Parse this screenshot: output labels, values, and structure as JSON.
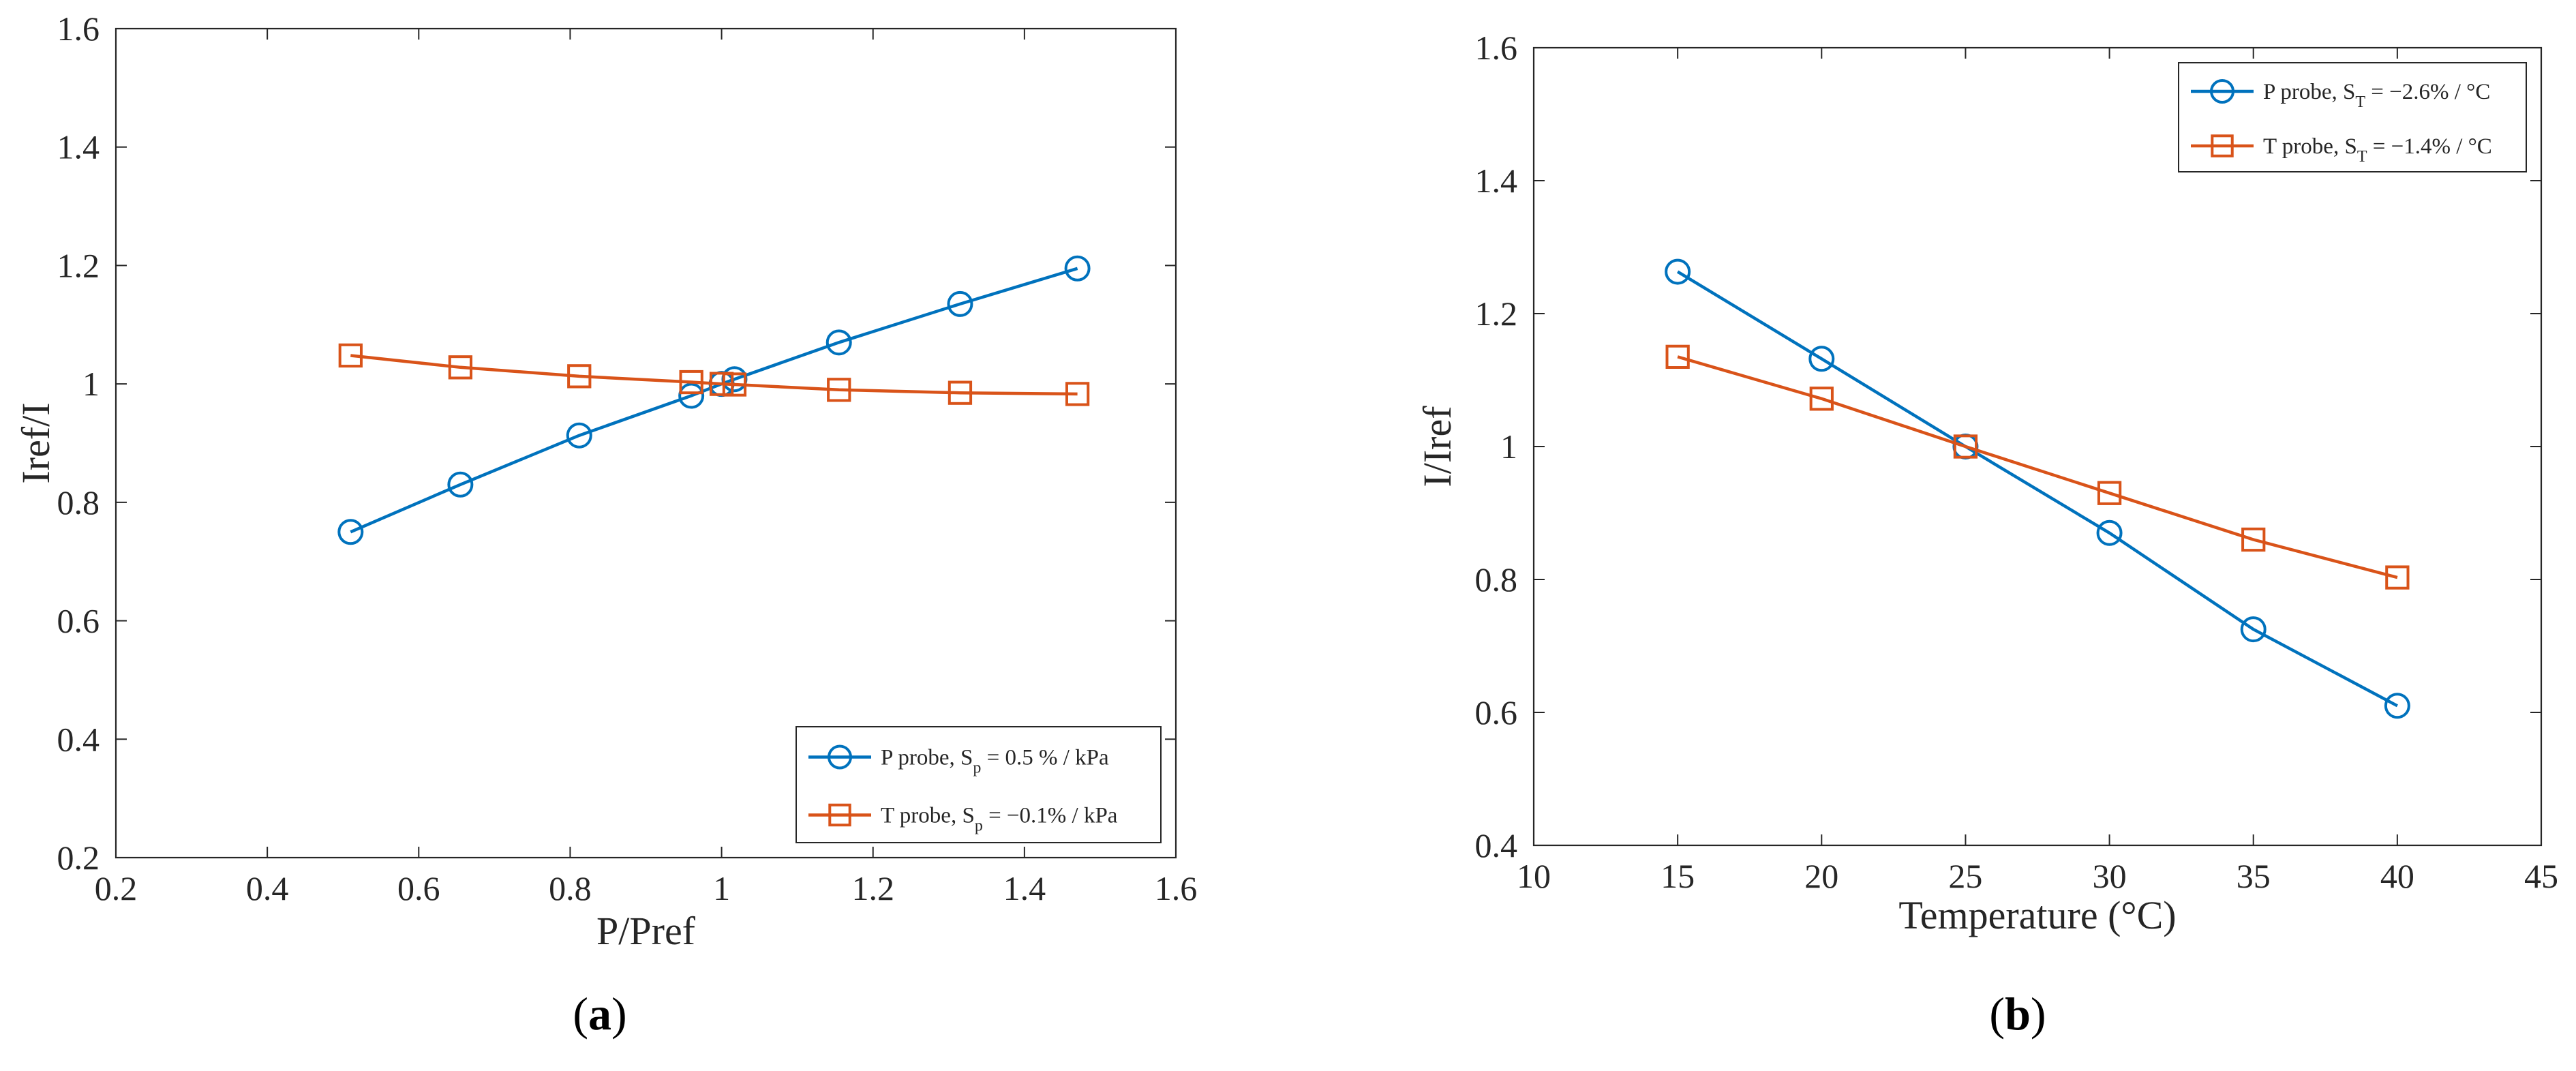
{
  "chart_data": [
    {
      "type": "line",
      "panel_label": "a",
      "xlabel": "P/Pref",
      "ylabel": "Iref/I",
      "xlim": [
        0.2,
        1.6
      ],
      "ylim": [
        0.2,
        1.6
      ],
      "xticks": [
        0.2,
        0.4,
        0.6,
        0.8,
        1.0,
        1.2,
        1.4,
        1.6
      ],
      "yticks": [
        0.2,
        0.4,
        0.6,
        0.8,
        1.0,
        1.2,
        1.4,
        1.6
      ],
      "xtick_labels": [
        "0.2",
        "0.4",
        "0.6",
        "0.8",
        "1",
        "1.2",
        "1.4",
        "1.6"
      ],
      "ytick_labels": [
        "0.2",
        "0.4",
        "0.6",
        "0.8",
        "1",
        "1.2",
        "1.4",
        "1.6"
      ],
      "grid": true,
      "legend_position": "bottom-right",
      "series": [
        {
          "name": "P probe, Sp = 0.5 % / kPa",
          "legend_prefix": "P probe, S",
          "legend_sub": "p",
          "legend_suffix": " = 0.5 % / kPa",
          "marker": "circle",
          "color": "#0072BD",
          "x": [
            0.51,
            0.655,
            0.812,
            0.96,
            1.0,
            1.017,
            1.155,
            1.315,
            1.47
          ],
          "y": [
            0.75,
            0.83,
            0.913,
            0.98,
            1.0,
            1.008,
            1.07,
            1.135,
            1.195
          ]
        },
        {
          "name": "T probe, Sp = −0.1% / kPa",
          "legend_prefix": "T probe, S",
          "legend_sub": "p",
          "legend_suffix": " = −0.1% / kPa",
          "marker": "square",
          "color": "#D95319",
          "x": [
            0.51,
            0.655,
            0.812,
            0.96,
            1.0,
            1.017,
            1.155,
            1.315,
            1.47
          ],
          "y": [
            1.048,
            1.028,
            1.013,
            1.003,
            1.0,
            0.999,
            0.99,
            0.985,
            0.983
          ]
        }
      ]
    },
    {
      "type": "line",
      "panel_label": "b",
      "xlabel": "Temperature (°C)",
      "ylabel": "I/Iref",
      "xlim": [
        10,
        45
      ],
      "ylim": [
        0.4,
        1.6
      ],
      "xticks": [
        10,
        15,
        20,
        25,
        30,
        35,
        40,
        45
      ],
      "yticks": [
        0.4,
        0.6,
        0.8,
        1.0,
        1.2,
        1.4,
        1.6
      ],
      "xtick_labels": [
        "10",
        "15",
        "20",
        "25",
        "30",
        "35",
        "40",
        "45"
      ],
      "ytick_labels": [
        "0.4",
        "0.6",
        "0.8",
        "1",
        "1.2",
        "1.4",
        "1.6"
      ],
      "grid": true,
      "legend_position": "top-right",
      "series": [
        {
          "name": "P probe, ST = −2.6% / °C",
          "legend_prefix": "P probe, S",
          "legend_sub": "T",
          "legend_suffix": " = −2.6% / °C",
          "marker": "circle",
          "color": "#0072BD",
          "x": [
            15,
            20,
            25,
            30,
            35,
            40
          ],
          "y": [
            1.263,
            1.132,
            1.0,
            0.87,
            0.725,
            0.61
          ]
        },
        {
          "name": "T probe, ST = −1.4% / °C",
          "legend_prefix": "T probe, S",
          "legend_sub": "T",
          "legend_suffix": " = −1.4% / °C",
          "marker": "square",
          "color": "#D95319",
          "x": [
            15,
            20,
            25,
            30,
            35,
            40
          ],
          "y": [
            1.135,
            1.072,
            1.0,
            0.93,
            0.86,
            0.803
          ]
        }
      ]
    }
  ],
  "captions": {
    "a": {
      "open": "(",
      "letter": "a",
      "close": ")"
    },
    "b": {
      "open": "(",
      "letter": "b",
      "close": ")"
    }
  }
}
